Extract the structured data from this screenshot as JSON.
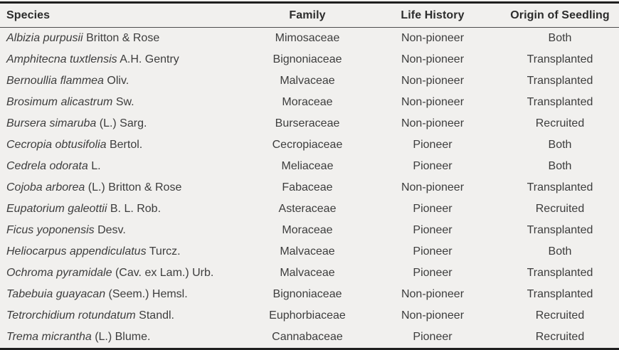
{
  "theme": {
    "page_background": "#f1f0ee",
    "text_color": "#3d3d3d",
    "header_text_color": "#2c2c2c",
    "outer_rule_color": "#1f1f1f",
    "header_rule_color": "#4d4d4d"
  },
  "table": {
    "columns": [
      "Species",
      "Family",
      "Life History",
      "Origin of Seedling"
    ],
    "rows": [
      {
        "species_italic": "Albizia purpusii",
        "species_author": "Britton & Rose",
        "family": "Mimosaceae",
        "life_history": "Non-pioneer",
        "origin": "Both"
      },
      {
        "species_italic": "Amphitecna tuxtlensis",
        "species_author": "A.H. Gentry",
        "family": "Bignoniaceae",
        "life_history": "Non-pioneer",
        "origin": "Transplanted"
      },
      {
        "species_italic": "Bernoullia flammea",
        "species_author": "Oliv.",
        "family": "Malvaceae",
        "life_history": "Non-pioneer",
        "origin": "Transplanted"
      },
      {
        "species_italic": "Brosimum alicastrum",
        "species_author": "Sw.",
        "family": "Moraceae",
        "life_history": "Non-pioneer",
        "origin": "Transplanted"
      },
      {
        "species_italic": "Bursera simaruba",
        "species_author": "(L.) Sarg.",
        "family": "Burseraceae",
        "life_history": "Non-pioneer",
        "origin": "Recruited"
      },
      {
        "species_italic": "Cecropia obtusifolia",
        "species_author": "Bertol.",
        "family": "Cecropiaceae",
        "life_history": "Pioneer",
        "origin": "Both"
      },
      {
        "species_italic": "Cedrela odorata",
        "species_author": "L.",
        "family": "Meliaceae",
        "life_history": "Pioneer",
        "origin": "Both"
      },
      {
        "species_italic": "Cojoba arborea",
        "species_author": "(L.) Britton & Rose",
        "family": "Fabaceae",
        "life_history": "Non-pioneer",
        "origin": "Transplanted"
      },
      {
        "species_italic": "Eupatorium galeottii",
        "species_author": "B. L. Rob.",
        "family": "Asteraceae",
        "life_history": "Pioneer",
        "origin": "Recruited"
      },
      {
        "species_italic": "Ficus yoponensis",
        "species_author": "Desv.",
        "family": "Moraceae",
        "life_history": "Pioneer",
        "origin": "Transplanted"
      },
      {
        "species_italic": "Heliocarpus appendiculatus",
        "species_author": "Turcz.",
        "family": "Malvaceae",
        "life_history": "Pioneer",
        "origin": "Both"
      },
      {
        "species_italic": "Ochroma pyramidale",
        "species_author": "(Cav. ex Lam.) Urb.",
        "family": "Malvaceae",
        "life_history": "Pioneer",
        "origin": "Transplanted"
      },
      {
        "species_italic": "Tabebuia guayacan",
        "species_author": "(Seem.) Hemsl.",
        "family": "Bignoniaceae",
        "life_history": "Non-pioneer",
        "origin": "Transplanted"
      },
      {
        "species_italic": "Tetrorchidium rotundatum",
        "species_author": "Standl.",
        "family": "Euphorbiaceae",
        "life_history": "Non-pioneer",
        "origin": "Recruited"
      },
      {
        "species_italic": "Trema micrantha",
        "species_author": "(L.) Blume.",
        "family": "Cannabaceae",
        "life_history": "Pioneer",
        "origin": "Recruited"
      }
    ]
  }
}
